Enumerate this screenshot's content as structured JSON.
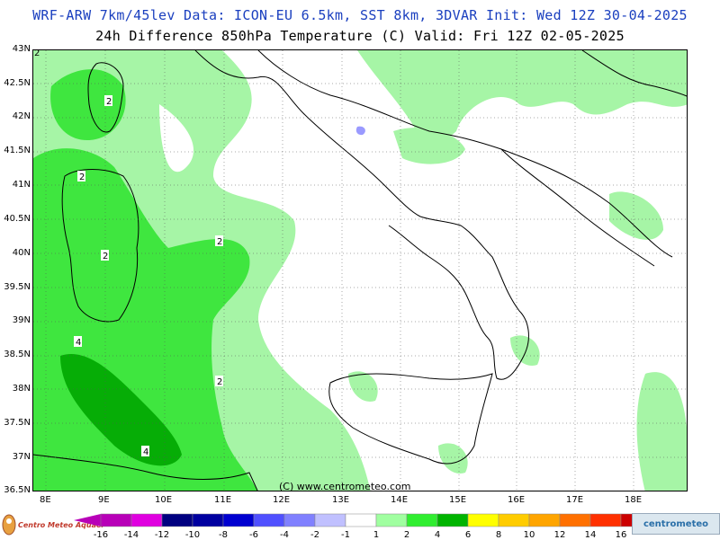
{
  "title_line1": "WRF-ARW 7km/45lev   Data: ICON-EU 6.5km, SST 8km, 3DVAR   Init: Wed 12Z 30-04-2025",
  "title_line2": "24h Difference 850hPa Temperature (C)  Valid: Fri 12Z 02-05-2025",
  "copyright": "(C) www.centrometeo.com",
  "logo_left_text": "Centro Meteo Aquaer",
  "logo_right_text": "centrometeo",
  "lat_labels": [
    "43N",
    "42.5N",
    "42N",
    "41.5N",
    "41N",
    "40.5N",
    "40N",
    "39.5N",
    "39N",
    "38.5N",
    "38N",
    "37.5N",
    "37N",
    "36.5N"
  ],
  "lon_labels": [
    "8E",
    "9E",
    "10E",
    "11E",
    "12E",
    "13E",
    "14E",
    "15E",
    "16E",
    "17E",
    "18E"
  ],
  "contour_labels": [
    "2",
    "2",
    "2",
    "2",
    "2",
    "4",
    "4",
    "2"
  ],
  "legend": {
    "colors": [
      "#b800b8",
      "#e000e0",
      "#000080",
      "#0000a0",
      "#0000d0",
      "#5050ff",
      "#8080ff",
      "#c0c0ff",
      "#ffffff",
      "#a0ffa0",
      "#30ee30",
      "#00b400",
      "#ffff00",
      "#ffcc00",
      "#ffa500",
      "#ff7000",
      "#ff3000",
      "#cc0000"
    ],
    "labels": [
      "-16",
      "-14",
      "-12",
      "-10",
      "-8",
      "-6",
      "-4",
      "-2",
      "-1",
      "1",
      "2",
      "4",
      "6",
      "8",
      "10",
      "12",
      "14",
      "16"
    ]
  },
  "colors": {
    "light_green": "#a6f5a6",
    "mid_green": "#3fe63f",
    "dark_green": "#06ad06",
    "blue_small": "#9a9aff"
  }
}
